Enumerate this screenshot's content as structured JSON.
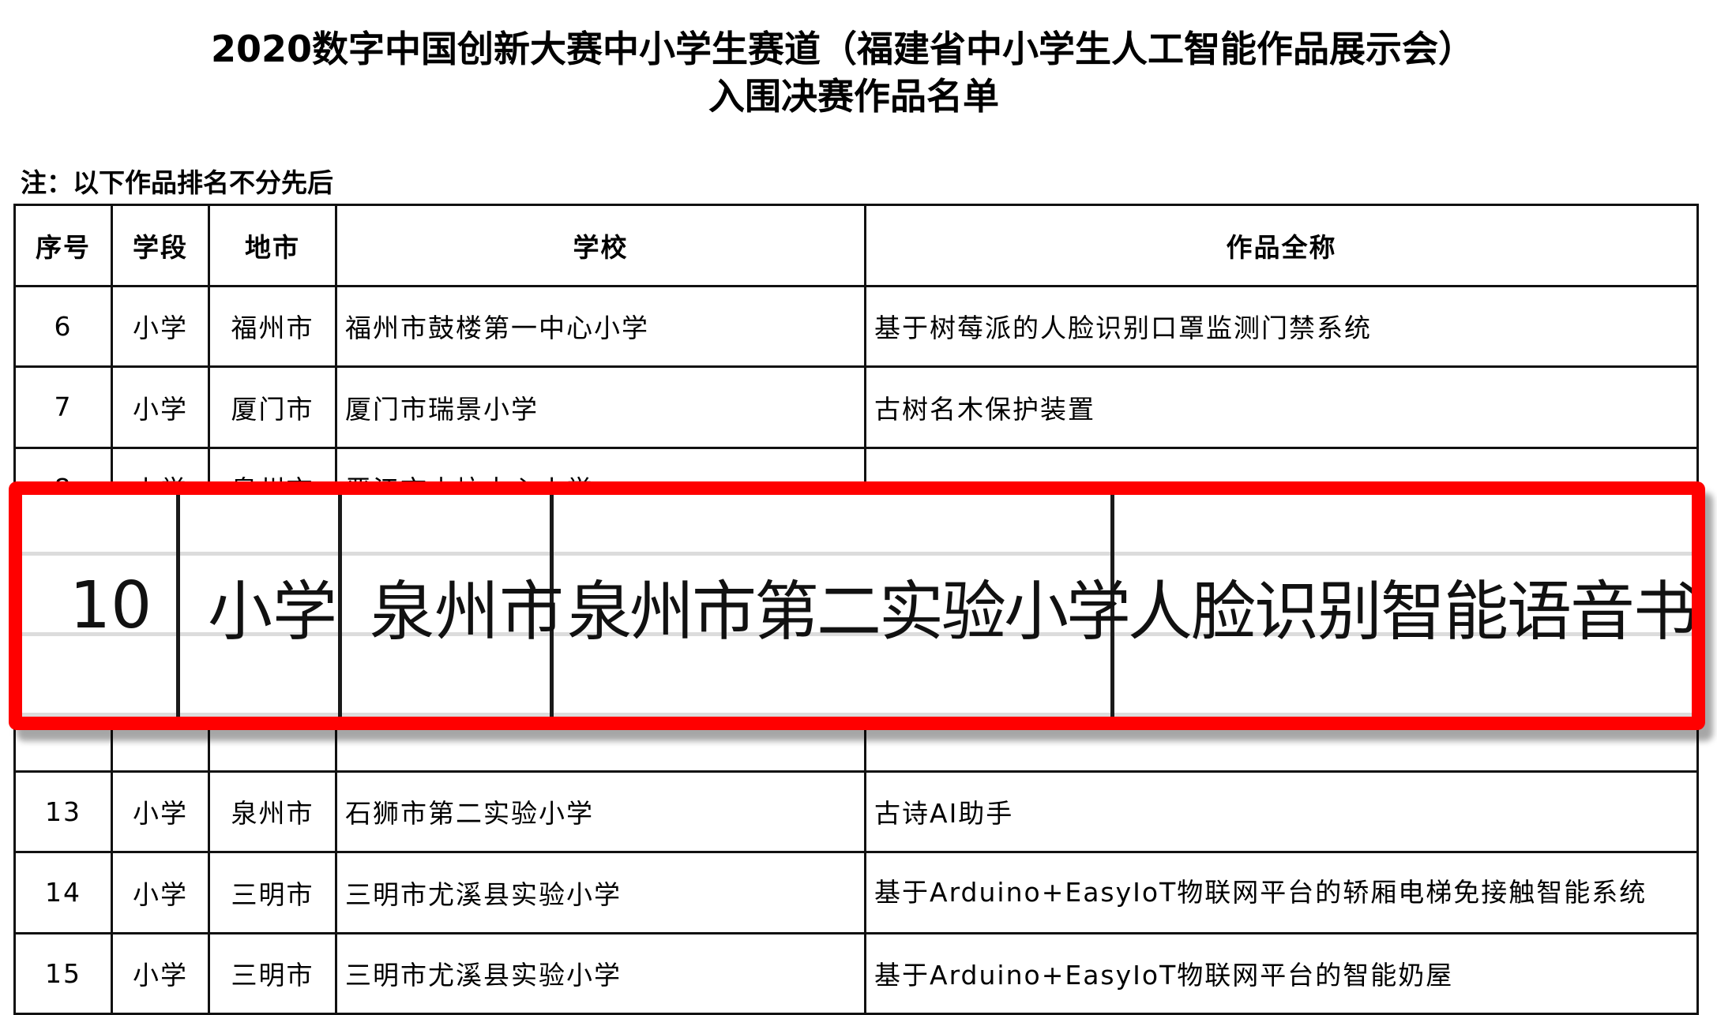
{
  "title": {
    "line1": "2020数字中国创新大赛中小学生赛道（福建省中小学生人工智能作品展示会）",
    "line2": "入围决赛作品名单"
  },
  "note": "注：以下作品排名不分先后",
  "table": {
    "headers": [
      "序号",
      "学段",
      "地市",
      "学校",
      "作品全称"
    ],
    "rows": [
      {
        "no": "6",
        "level": "小学",
        "city": "福州市",
        "school": "福州市鼓楼第一中心小学",
        "work": "基于树莓派的人脸识别口罩监测门禁系统"
      },
      {
        "no": "7",
        "level": "小学",
        "city": "厦门市",
        "school": "厦门市瑞景小学",
        "work": "古树名木保护装置"
      },
      {
        "no": "8",
        "level": "小学",
        "city": "泉州市",
        "school": "晋江市内坑中心小学",
        "work": ""
      },
      {
        "no": "",
        "level": "",
        "city": "",
        "school": "",
        "work": ""
      },
      {
        "no": "",
        "level": "",
        "city": "",
        "school": "",
        "work": ""
      },
      {
        "no": "",
        "level": "",
        "city": "",
        "school": "",
        "work": ""
      },
      {
        "no": "13",
        "level": "小学",
        "city": "泉州市",
        "school": "石狮市第二实验小学",
        "work": "古诗AI助手"
      },
      {
        "no": "14",
        "level": "小学",
        "city": "三明市",
        "school": "三明市尤溪县实验小学",
        "work": "基于Arduino+EasyIoT物联网平台的轿厢电梯免接触智能系统"
      },
      {
        "no": "15",
        "level": "小学",
        "city": "三明市",
        "school": "三明市尤溪县实验小学",
        "work": "基于Arduino+EasyIoT物联网平台的智能奶屋"
      }
    ]
  },
  "highlight": {
    "color": "#ff0000",
    "no": "10",
    "level": "小学",
    "city": "泉州市",
    "school": "泉州市第二实验小学",
    "work": "人脸识别智能语音书柜"
  }
}
